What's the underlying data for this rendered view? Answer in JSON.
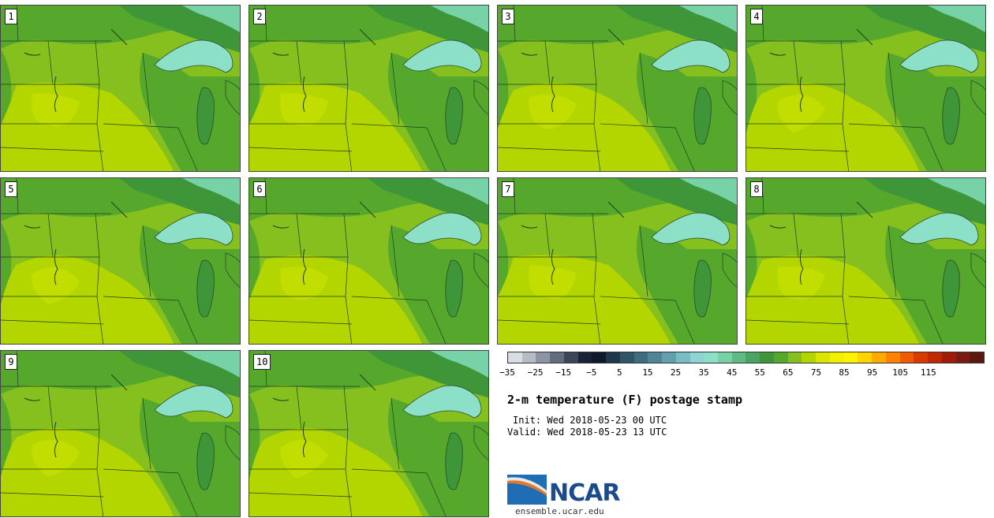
{
  "panels": [
    {
      "label": "1"
    },
    {
      "label": "2"
    },
    {
      "label": "3"
    },
    {
      "label": "4"
    },
    {
      "label": "5"
    },
    {
      "label": "6"
    },
    {
      "label": "7"
    },
    {
      "label": "8"
    },
    {
      "label": "9"
    },
    {
      "label": "10"
    }
  ],
  "colorbar": {
    "colors": [
      "#d8dde3",
      "#b5bcc6",
      "#8d95a3",
      "#646d7e",
      "#3c4559",
      "#1a2237",
      "#0f1a2c",
      "#1e3a4a",
      "#2f5566",
      "#3f6d80",
      "#4f8595",
      "#62a0ad",
      "#78bcc4",
      "#8fd3d2",
      "#8ce0c8",
      "#78d2a8",
      "#5fbb86",
      "#4aa464",
      "#3e9638",
      "#56a82c",
      "#86c01e",
      "#b4d600",
      "#d8e600",
      "#f0f000",
      "#fff200",
      "#ffd400",
      "#ffaa00",
      "#ff8200",
      "#f05a00",
      "#d83a00",
      "#c02800",
      "#a01c08",
      "#7a1a10",
      "#5a1810"
    ],
    "tick_labels": [
      "−35",
      "−25",
      "−15",
      "−5",
      "5",
      "15",
      "25",
      "35",
      "45",
      "55",
      "65",
      "75",
      "85",
      "95",
      "105",
      "115"
    ]
  },
  "title": "2-m temperature (F) postage stamp",
  "init": "Init: Wed 2018-05-23 00 UTC",
  "valid": "Valid: Wed 2018-05-23 13 UTC",
  "logo": {
    "name": "NCAR",
    "url": "ensemble.ucar.edu"
  },
  "map_colors": {
    "warm": "#b4d600",
    "mid": "#86c01e",
    "cool": "#56a82c",
    "cooler": "#3e9638",
    "cold": "#78d2a8",
    "colder": "#8fd3d2",
    "lake": "#8ce0c8"
  }
}
